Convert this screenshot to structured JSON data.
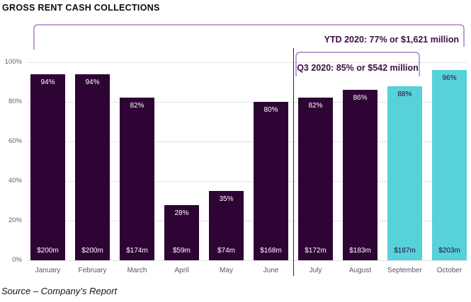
{
  "header": {
    "title": "GROSS RENT CASH COLLECTIONS"
  },
  "footer": {
    "source": "Source – Company’s Report"
  },
  "colors": {
    "bar_dark": "#2e0434",
    "bar_highlight": "#57d1da",
    "label_on_dark": "#ffffff",
    "label_on_highlight": "#2e0434",
    "axis_text": "#6b5b6d",
    "month_text": "#5f5166",
    "annotation_text": "#3c0e44",
    "bracket": "#a87fd0",
    "separator": "#3f1747",
    "gridline": "#e3e3e3",
    "title_text": "#0b0b0b"
  },
  "chart_data": {
    "type": "bar",
    "title": "GROSS RENT CASH COLLECTIONS",
    "categories": [
      "January",
      "February",
      "March",
      "April",
      "May",
      "June",
      "July",
      "August",
      "September",
      "October"
    ],
    "series": [
      {
        "name": "Percent of gross rent collected",
        "unit": "%",
        "values": [
          94,
          94,
          82,
          28,
          35,
          80,
          82,
          86,
          88,
          96
        ]
      },
      {
        "name": "Cash collected",
        "labels": [
          "$200m",
          "$200m",
          "$174m",
          "$59m",
          "$74m",
          "$168m",
          "$172m",
          "$183m",
          "$187m",
          "$203m"
        ]
      }
    ],
    "highlight_months": [
      "September",
      "October"
    ],
    "separator_after": "June",
    "ylim": [
      0,
      100
    ],
    "yticks": [
      0,
      20,
      40,
      60,
      80,
      100
    ],
    "ytick_suffix": "%",
    "grid": true,
    "legend": "none",
    "annotations": [
      {
        "id": "ytd",
        "text": "YTD 2020: 77% or $1,621 million",
        "span": "January–October"
      },
      {
        "id": "q3",
        "text": "Q3 2020: 85% or $542 million",
        "span": "July–September"
      }
    ]
  }
}
